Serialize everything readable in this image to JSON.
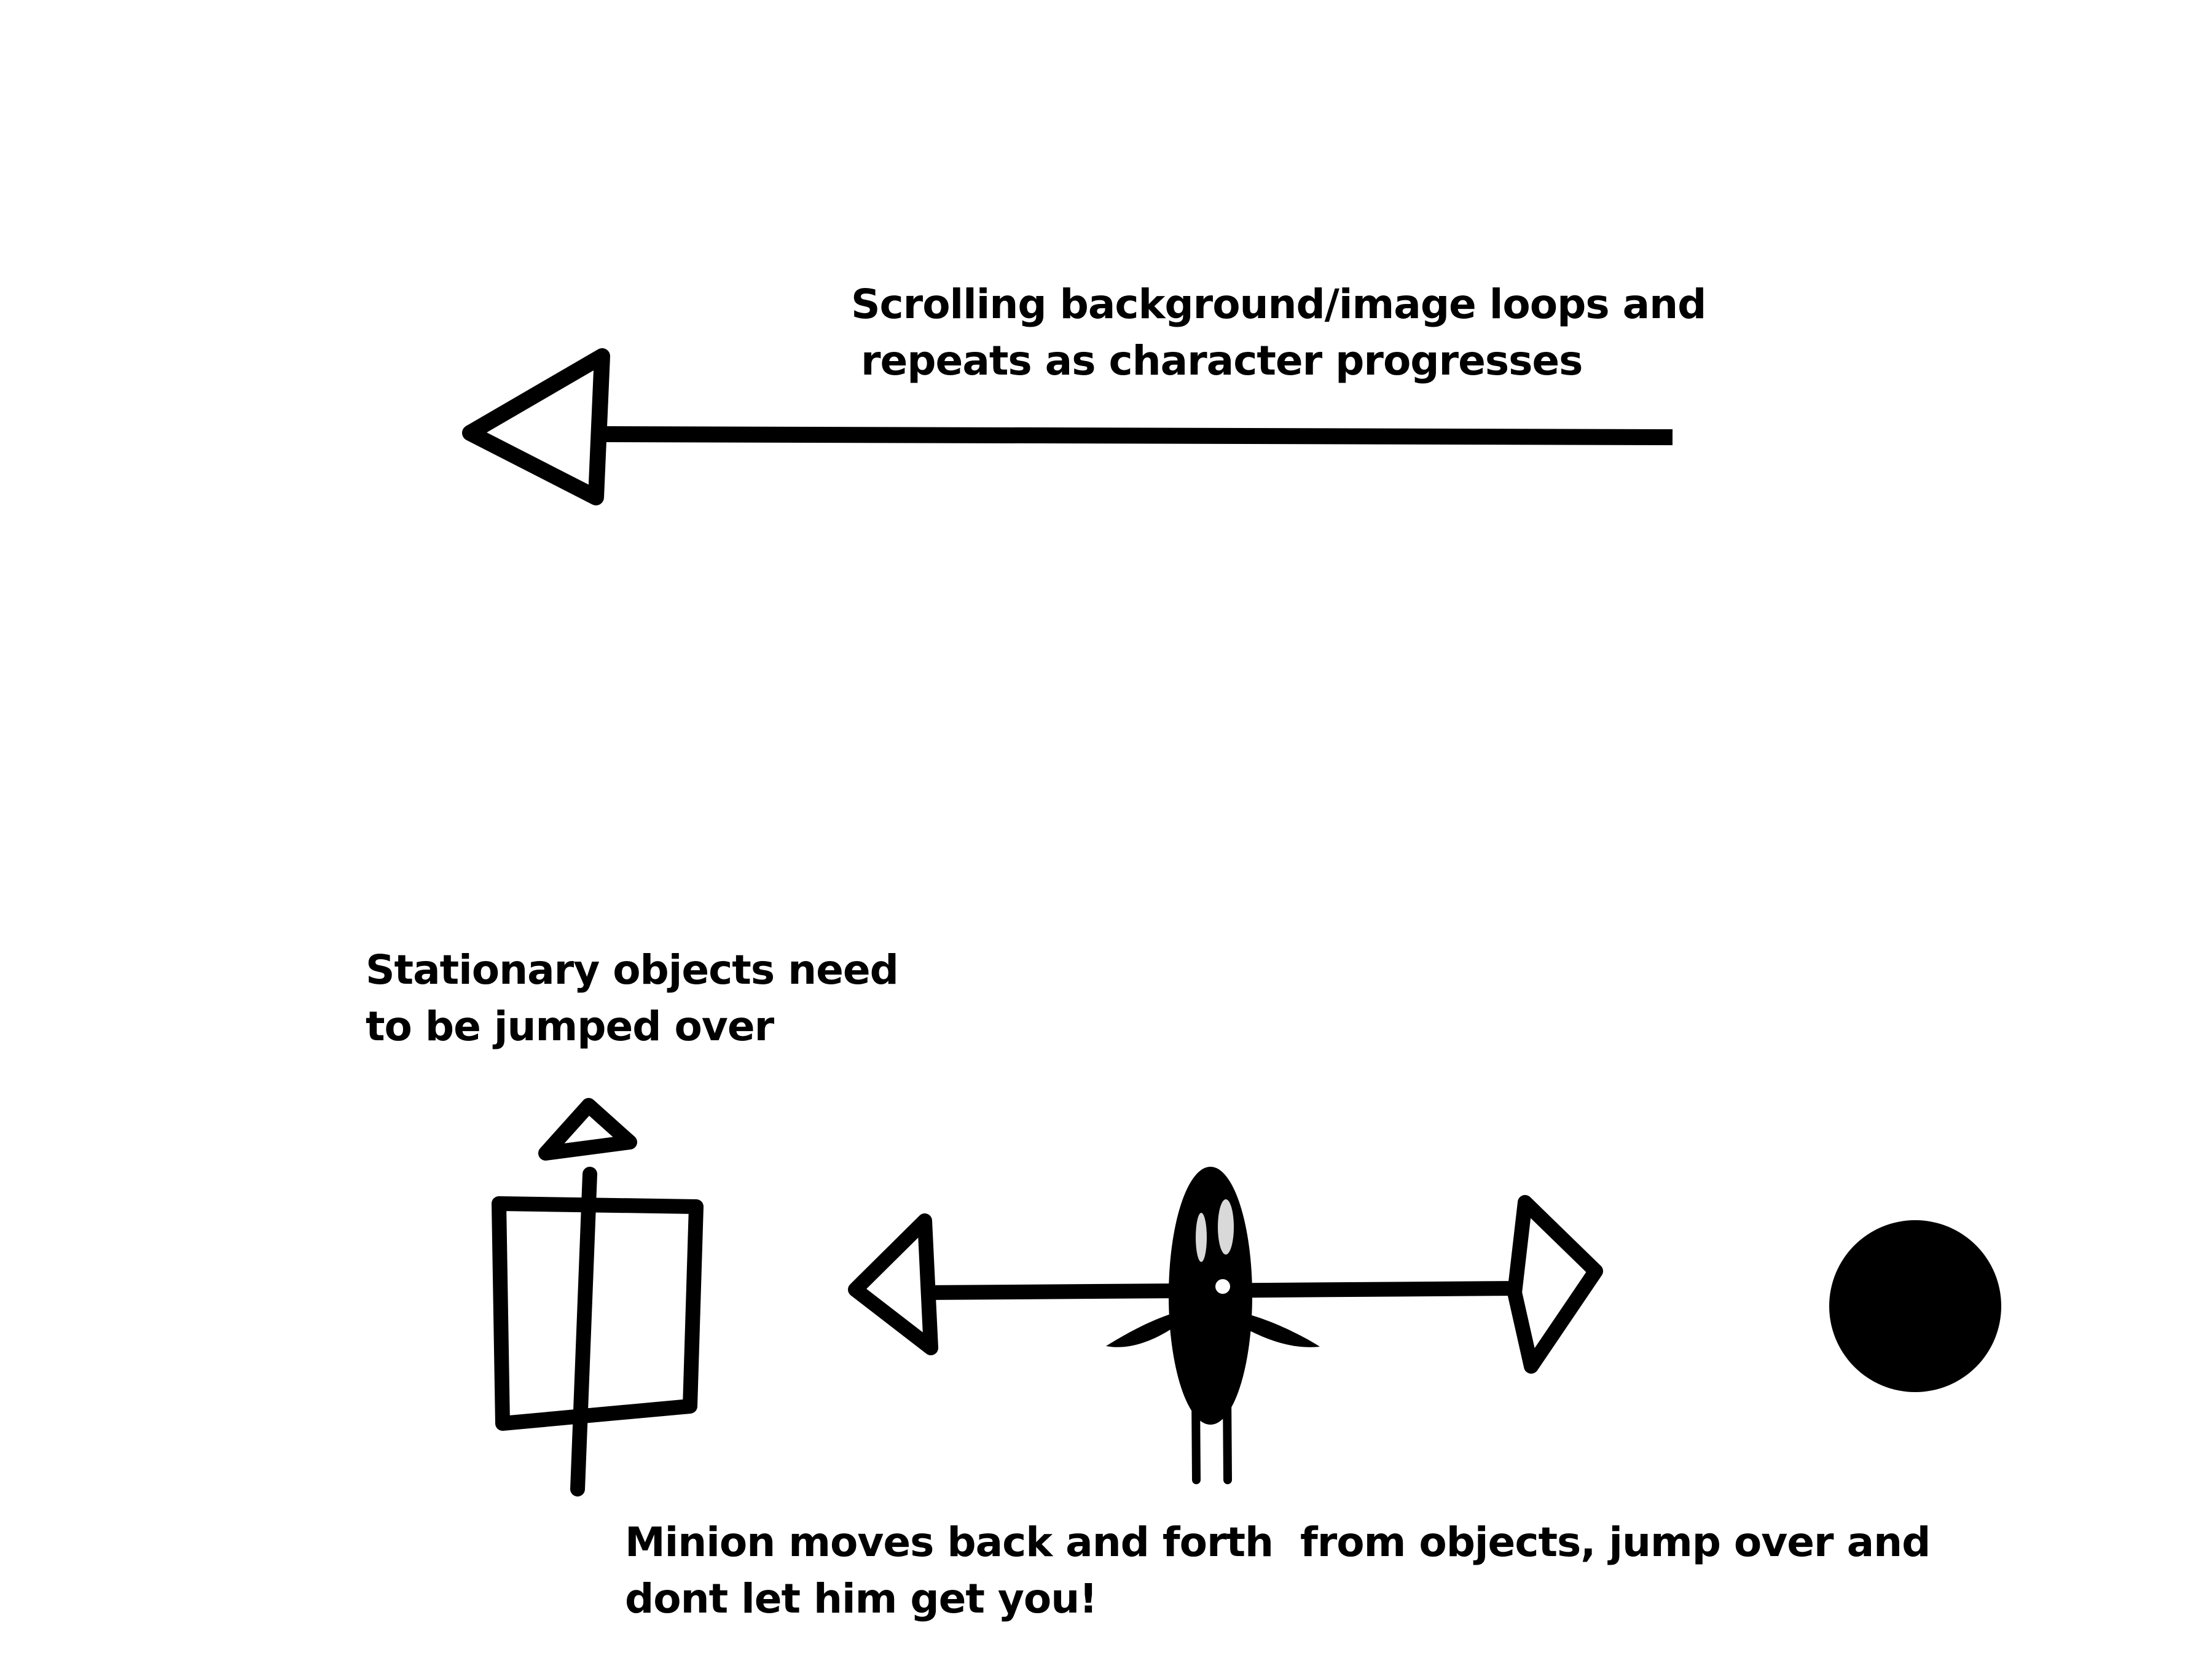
{
  "captions": {
    "scrolling": {
      "line1": "Scrolling background/image loops and",
      "line2": "repeats as character progresses"
    },
    "stationary": {
      "line1": "Stationary objects need",
      "line2": "to be jumped over"
    },
    "minion": {
      "line1": "Minion moves back and forth  from objects, jump over and",
      "line2": "dont let him get you!"
    }
  },
  "colors": {
    "ink": "#000000",
    "background": "#ffffff",
    "eye": "#d9d9d9"
  },
  "icons": {
    "scroll_direction": "left-arrow-icon",
    "jump": "up-arrow-icon",
    "obstacle": "box-icon",
    "patrol": "double-arrow-icon",
    "enemy": "minion-icon",
    "ball": "ball-icon"
  }
}
